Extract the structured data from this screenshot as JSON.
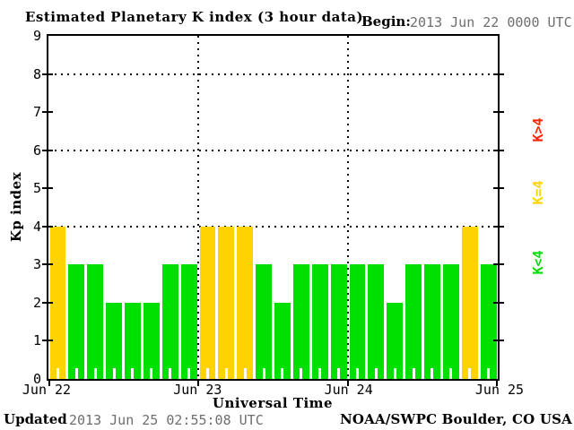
{
  "header": {
    "title": "Estimated Planetary K index (3 hour data)",
    "begin_label": "Begin:",
    "begin_value": "2013 Jun 22 0000 UTC"
  },
  "footer": {
    "updated_label": "Updated",
    "updated_value": "2013 Jun 25 02:55:08 UTC",
    "credit": "NOAA/SWPC Boulder, CO USA"
  },
  "chart_data": {
    "type": "bar",
    "title": "Estimated Planetary K index (3 hour data)",
    "xlabel": "Universal Time",
    "ylabel": "Kp index",
    "begin": "2013 Jun 22 0000 UTC",
    "interval_hours": 3,
    "bars_per_day": 8,
    "ylim": [
      0,
      9
    ],
    "y_ticks": [
      0,
      1,
      2,
      3,
      4,
      5,
      6,
      7,
      8,
      9
    ],
    "x_tick_labels": [
      "Jun 22",
      "Jun 23",
      "Jun 24",
      "Jun 25"
    ],
    "grid_y_values": [
      4,
      6,
      8
    ],
    "values": [
      4,
      3,
      3,
      2,
      2,
      2,
      3,
      3,
      4,
      4,
      4,
      3,
      2,
      3,
      3,
      3,
      3,
      3,
      2,
      3,
      3,
      3,
      4,
      3
    ],
    "colors": {
      "k_lt_4": "#00e000",
      "k_eq_4": "#ffd300",
      "k_gt_4": "#ff2200"
    },
    "legend": [
      {
        "label": "K>4",
        "color": "#ff2200"
      },
      {
        "label": "K=4",
        "color": "#ffd300"
      },
      {
        "label": "K<4",
        "color": "#00e000"
      }
    ],
    "grid": "dotted"
  }
}
